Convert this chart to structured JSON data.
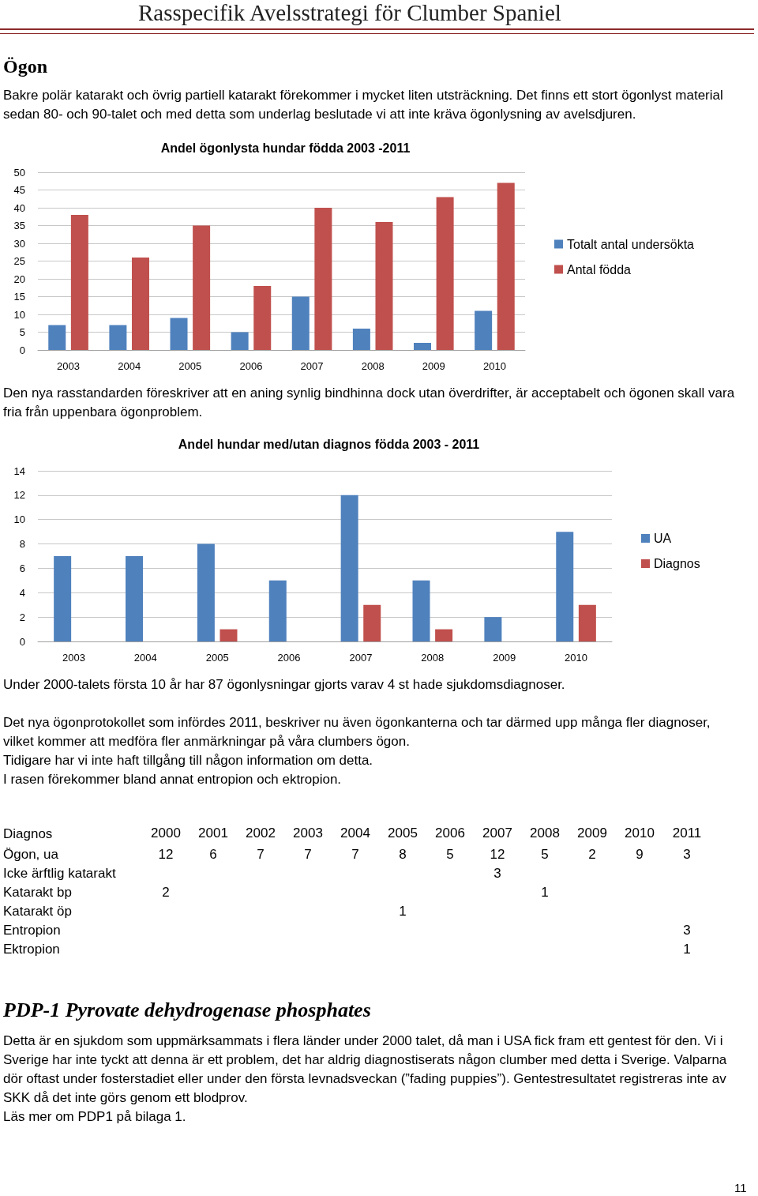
{
  "chart_data": [
    {
      "type": "bar",
      "title": "Andel ögonlysta hundar födda 2003 -2011",
      "categories": [
        "2003",
        "2004",
        "2005",
        "2006",
        "2007",
        "2008",
        "2009",
        "2010"
      ],
      "series": [
        {
          "name": "Totalt antal undersökta",
          "color": "#4f81bd",
          "values": [
            7,
            7,
            9,
            5,
            15,
            6,
            2,
            11
          ]
        },
        {
          "name": "Antal födda",
          "color": "#c0504d",
          "values": [
            38,
            26,
            35,
            18,
            40,
            36,
            43,
            47
          ]
        }
      ],
      "ylim": [
        0,
        50
      ],
      "yticks": [
        0,
        5,
        10,
        15,
        20,
        25,
        30,
        35,
        40,
        45,
        50
      ],
      "grid": "y",
      "legend": "right",
      "annotations": [
        "Rasspecifik Avelsstrategi för Clumber Spaniel",
        "Ögon",
        "Bakre polär katarakt och övrig partiell katarakt förekommer i mycket liten utsträckning. Det finns ett stort ögonlyst material sedan 80- och 90-talet och med detta som underlag beslutade vi att inte kräva ögonlysning av avelsdjuren."
      ]
    },
    {
      "type": "bar",
      "title": "Andel hundar med/utan diagnos födda 2003 - 2011",
      "categories": [
        "2003",
        "2004",
        "2005",
        "2006",
        "2007",
        "2008",
        "2009",
        "2010"
      ],
      "series": [
        {
          "name": "UA",
          "color": "#4f81bd",
          "values": [
            7,
            7,
            8,
            5,
            12,
            5,
            2,
            9
          ]
        },
        {
          "name": "Diagnos",
          "color": "#c0504d",
          "values": [
            0,
            0,
            1,
            0,
            3,
            1,
            0,
            3
          ]
        }
      ],
      "ylim": [
        0,
        14
      ],
      "yticks": [
        0,
        2,
        4,
        6,
        8,
        10,
        12,
        14
      ],
      "grid": "y",
      "legend": "right",
      "annotations": [
        "Den nya rasstandarden föreskriver att en aning synlig bindhinna dock utan överdrifter, är acceptabelt och ögonen skall vara fria från uppenbara ögonproblem.",
        "Under 2000-talets första 10 år har 87 ögonlysningar gjorts varav 4 st hade sjukdomsdiagnoser.",
        "Det nya ögonprotokollet som infördes  2011,  beskriver nu även ögonkanterna och tar därmed upp många fler diagnoser, vilket kommer att medföra fler anmärkningar på våra clumbers ögon.",
        "Tidigare har vi inte haft tillgång till någon information om detta.",
        "I rasen förekommer bland annat entropion och ektropion."
      ]
    },
    {
      "type": "heatmap",
      "ylabel": "Diagnos",
      "categories": [
        "2000",
        "2001",
        "2002",
        "2003",
        "2004",
        "2005",
        "2006",
        "2007",
        "2008",
        "2009",
        "2010",
        "2011"
      ],
      "y_categories": [
        "Ögon, ua",
        "Icke ärftlig katarakt",
        "Katarakt bp",
        "Katarakt öp",
        "Entropion",
        "Ektropion"
      ],
      "cells": [
        [
          12,
          6,
          7,
          7,
          7,
          8,
          5,
          12,
          5,
          2,
          9,
          3
        ],
        [
          null,
          null,
          null,
          null,
          null,
          null,
          null,
          3,
          null,
          null,
          null,
          null
        ],
        [
          2,
          null,
          null,
          null,
          null,
          null,
          null,
          null,
          1,
          null,
          null,
          null
        ],
        [
          null,
          null,
          null,
          null,
          null,
          1,
          null,
          null,
          null,
          null,
          null,
          null
        ],
        [
          null,
          null,
          null,
          null,
          null,
          null,
          null,
          null,
          null,
          null,
          null,
          3
        ],
        [
          null,
          null,
          null,
          null,
          null,
          null,
          null,
          null,
          null,
          null,
          null,
          1
        ]
      ],
      "data_labels": true,
      "annotations": [
        "PDP-1 Pyrovate dehydrogenase phosphates",
        "Detta är en sjukdom som uppmärksammats i flera länder under 2000 talet, då man i USA fick fram ett gentest för den. Vi i Sverige har inte tyckt att denna är ett problem, det har aldrig diagnostiserats någon clumber med detta i Sverige. Valparna dör oftast under fosterstadiet eller under den första levnadsveckan (”fading puppies”). Gentestresultatet registreras inte av SKK då det inte görs genom ett blodprov.",
        "Läs mer om PDP1 på bilaga 1.",
        "11"
      ]
    }
  ]
}
